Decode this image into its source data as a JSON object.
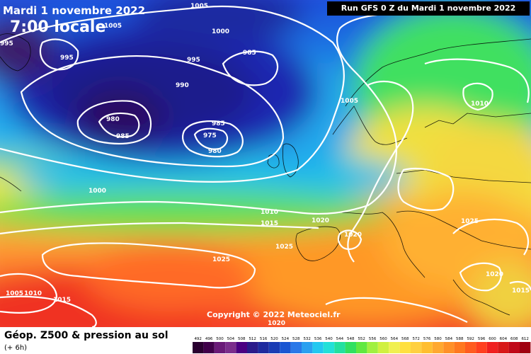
{
  "header": {
    "date": "Mardi 1 novembre 2022",
    "local_time": "7:00 locale",
    "run": "Run GFS 0 Z du Mardi 1 novembre 2022"
  },
  "copyright": "Copyright © 2022 Meteociel.fr",
  "footer": {
    "title": "Géop. Z500 & pression au sol",
    "subtitle": "(+ 6h)"
  },
  "isobars": [
    {
      "text": "1005"
    },
    {
      "text": "1005"
    },
    {
      "text": "1000"
    },
    {
      "text": "985"
    },
    {
      "text": "995"
    },
    {
      "text": "995"
    },
    {
      "text": "995"
    },
    {
      "text": "990"
    },
    {
      "text": "980"
    },
    {
      "text": "985"
    },
    {
      "text": "985"
    },
    {
      "text": "975"
    },
    {
      "text": "980"
    },
    {
      "text": "1005"
    },
    {
      "text": "1010"
    },
    {
      "text": "1000"
    },
    {
      "text": "1010"
    },
    {
      "text": "1015"
    },
    {
      "text": "1020"
    },
    {
      "text": "1020"
    },
    {
      "text": "1025"
    },
    {
      "text": "1025"
    },
    {
      "text": "1025"
    },
    {
      "text": "1020"
    },
    {
      "text": "1005"
    },
    {
      "text": "1010"
    },
    {
      "text": "1015"
    },
    {
      "text": "1020"
    },
    {
      "text": "1015"
    }
  ],
  "legend": {
    "values": [
      "492",
      "496",
      "500",
      "504",
      "508",
      "512",
      "516",
      "520",
      "524",
      "528",
      "532",
      "536",
      "540",
      "544",
      "548",
      "552",
      "556",
      "560",
      "564",
      "568",
      "572",
      "576",
      "580",
      "584",
      "588",
      "592",
      "596",
      "600",
      "604",
      "608",
      "612"
    ],
    "colors": [
      "#2a0030",
      "#40004a",
      "#6a1a78",
      "#7b2d8c",
      "#4b0082",
      "#2a1a8a",
      "#1e2a9e",
      "#1a3cb4",
      "#1a56d2",
      "#2a78e8",
      "#2aa0f0",
      "#22c8f0",
      "#22e0d8",
      "#22e0a0",
      "#30e060",
      "#60e840",
      "#a0f040",
      "#d0f040",
      "#f0f050",
      "#ffe040",
      "#ffd040",
      "#ffbe30",
      "#ffa830",
      "#ff9028",
      "#ff7820",
      "#ff5c20",
      "#ff4020",
      "#f02020",
      "#d81818",
      "#c00818",
      "#a00010"
    ]
  },
  "colors": {
    "trough": "#140c5c",
    "deep_blue": "#1a1a9a",
    "blue": "#1c3cd8",
    "cyan": "#22b8f0",
    "green": "#40e060",
    "yellow": "#f4f040",
    "orange": "#ffa030",
    "red": "#f83020"
  }
}
